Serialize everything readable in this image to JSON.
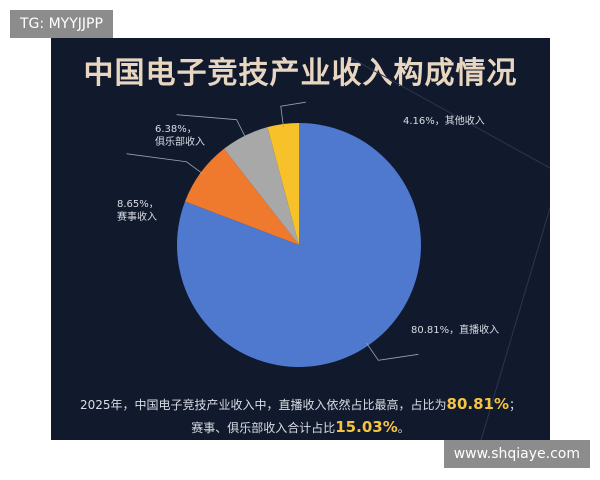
{
  "chart_data": {
    "type": "pie",
    "title": "中国电子竞技产业收入构成情况",
    "slices": [
      {
        "label": "直播收入",
        "value": 80.81,
        "display": "80.81%，直播收入",
        "color": "#4f78cf"
      },
      {
        "label": "赛事收入",
        "value": 8.65,
        "display": "8.65%，",
        "display2": "赛事收入",
        "color": "#ef7a2e"
      },
      {
        "label": "俱乐部收入",
        "value": 6.38,
        "display": "6.38%，",
        "display2": "俱乐部收入",
        "color": "#a8a8a8"
      },
      {
        "label": "其他收入",
        "value": 4.16,
        "display": "4.16%，其他收入",
        "color": "#f7c12a"
      }
    ],
    "start": "top",
    "direction": "clockwise"
  },
  "footer": {
    "line1_text": "2025年，中国电子竞技产业收入中，直播收入依然占比最高，占比为",
    "line1_value": "80.81%",
    "line1_end": "；",
    "line2_text": "赛事、俱乐部收入合计占比",
    "line2_value": "15.03%",
    "line2_end": "。"
  },
  "watermarks": {
    "top_left": "TG: MYYJJPP",
    "bottom_right": "www.shqiaye.com"
  }
}
